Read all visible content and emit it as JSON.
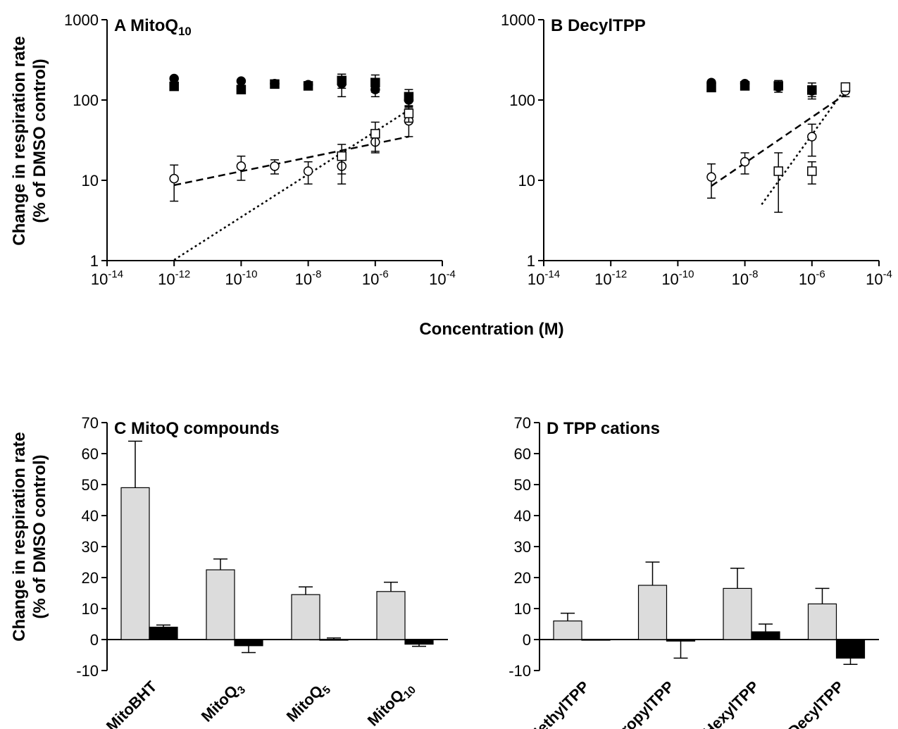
{
  "figure": {
    "y_title_line1": "Change in respiration rate",
    "y_title_line2": "(% of DMSO control)",
    "x_title_top": "Concentration (M)"
  },
  "chart_data": [
    {
      "panel": "A",
      "title_text": "MitoQ",
      "title_sub": "10",
      "type": "scatter",
      "x_scale": "log",
      "y_scale": "log",
      "xlim_exp": [
        -14,
        -4
      ],
      "ylim": [
        1,
        1000
      ],
      "x_ticks_exp": [
        -14,
        -12,
        -10,
        -8,
        -6,
        -4
      ],
      "y_ticks": [
        "1",
        "10",
        "100",
        "1000"
      ],
      "series": [
        {
          "marker": "filled-circle",
          "points": [
            {
              "x": -12,
              "y": 185
            },
            {
              "x": -10,
              "y": 172
            },
            {
              "x": -9,
              "y": 160
            },
            {
              "x": -8,
              "y": 155
            },
            {
              "x": -7,
              "y": 160,
              "err": 50
            },
            {
              "x": -6,
              "y": 135,
              "err": 25
            },
            {
              "x": -5,
              "y": 100,
              "err": 20
            }
          ]
        },
        {
          "marker": "filled-square",
          "points": [
            {
              "x": -12,
              "y": 148
            },
            {
              "x": -10,
              "y": 135
            },
            {
              "x": -9,
              "y": 158
            },
            {
              "x": -8,
              "y": 150
            },
            {
              "x": -7,
              "y": 175,
              "err": 35
            },
            {
              "x": -6,
              "y": 165,
              "err": 40
            },
            {
              "x": -5,
              "y": 110,
              "err": 25
            }
          ]
        },
        {
          "marker": "open-circle",
          "points": [
            {
              "x": -12,
              "y": 10.5,
              "err": 5
            },
            {
              "x": -10,
              "y": 15,
              "err": 5
            },
            {
              "x": -9,
              "y": 15,
              "err": 3
            },
            {
              "x": -8,
              "y": 13,
              "err": 4
            },
            {
              "x": -7,
              "y": 15,
              "err": 6
            },
            {
              "x": -6,
              "y": 30,
              "err": 8
            },
            {
              "x": -5,
              "y": 55,
              "err": 20
            }
          ],
          "fit": {
            "from": [
              -12,
              8.7
            ],
            "to": [
              -5,
              35
            ]
          }
        },
        {
          "marker": "open-square",
          "points": [
            {
              "x": -7,
              "y": 20,
              "err": 8
            },
            {
              "x": -6,
              "y": 38,
              "err": 15
            },
            {
              "x": -5,
              "y": 68,
              "err": 15
            }
          ],
          "fit": {
            "from": [
              -12,
              1.02
            ],
            "to": [
              -5,
              75
            ]
          }
        }
      ]
    },
    {
      "panel": "B",
      "title_text": "DecylTPP",
      "title_sub": "",
      "type": "scatter",
      "x_scale": "log",
      "y_scale": "log",
      "xlim_exp": [
        -14,
        -4
      ],
      "ylim": [
        1,
        1000
      ],
      "x_ticks_exp": [
        -14,
        -12,
        -10,
        -8,
        -6,
        -4
      ],
      "y_ticks": [
        "1",
        "10",
        "100",
        "1000"
      ],
      "series": [
        {
          "marker": "filled-circle",
          "points": [
            {
              "x": -9,
              "y": 165
            },
            {
              "x": -8,
              "y": 160
            },
            {
              "x": -7,
              "y": 145
            },
            {
              "x": -6,
              "y": 130,
              "err": 20
            }
          ]
        },
        {
          "marker": "filled-square",
          "points": [
            {
              "x": -9,
              "y": 143
            },
            {
              "x": -8,
              "y": 150
            },
            {
              "x": -7,
              "y": 150,
              "err": 25
            },
            {
              "x": -6,
              "y": 133,
              "err": 30
            }
          ]
        },
        {
          "marker": "open-circle",
          "points": [
            {
              "x": -9,
              "y": 11,
              "err": 5
            },
            {
              "x": -8,
              "y": 17,
              "err": 5
            },
            {
              "x": -6,
              "y": 35,
              "err": 15
            },
            {
              "x": -5,
              "y": 130,
              "err": 20
            }
          ],
          "fit": {
            "from": [
              -9,
              8.5
            ],
            "to": [
              -5,
              118
            ]
          }
        },
        {
          "marker": "open-square",
          "points": [
            {
              "x": -7,
              "y": 13,
              "err": 9
            },
            {
              "x": -6,
              "y": 13,
              "err": 4
            },
            {
              "x": -5,
              "y": 145,
              "err": 10
            }
          ],
          "fit": {
            "from": [
              -7.5,
              5
            ],
            "to": [
              -5,
              140
            ]
          }
        }
      ]
    },
    {
      "panel": "C",
      "title_text": "MitoQ compounds",
      "type": "bar",
      "ylim": [
        -10,
        70
      ],
      "y_ticks": [
        "-10",
        "0",
        "10",
        "20",
        "30",
        "40",
        "50",
        "60",
        "70"
      ],
      "categories": [
        {
          "main": "MitoBHT",
          "sub": ""
        },
        {
          "main": "MitoQ",
          "sub": "3"
        },
        {
          "main": "MitoQ",
          "sub": "5"
        },
        {
          "main": "MitoQ",
          "sub": "10"
        }
      ],
      "series": [
        {
          "color": "#dcdcdc",
          "values": [
            49,
            22.5,
            14.5,
            15.5
          ],
          "errors": [
            15,
            3.5,
            2.5,
            3
          ]
        },
        {
          "color": "#000000",
          "values": [
            4,
            -2,
            0,
            -1.5
          ],
          "errors": [
            0.7,
            2.2,
            0.5,
            0.7
          ]
        }
      ]
    },
    {
      "panel": "D",
      "title_text": "TPP cations",
      "type": "bar",
      "ylim": [
        -10,
        70
      ],
      "y_ticks": [
        "-10",
        "0",
        "10",
        "20",
        "30",
        "40",
        "50",
        "60",
        "70"
      ],
      "categories": [
        {
          "main": "MethylTPP",
          "sub": ""
        },
        {
          "main": "PropylTPP",
          "sub": ""
        },
        {
          "main": "HexylTPP",
          "sub": ""
        },
        {
          "main": "DecylTPP",
          "sub": ""
        }
      ],
      "series": [
        {
          "color": "#dcdcdc",
          "values": [
            6,
            17.5,
            16.5,
            11.5
          ],
          "errors": [
            2.5,
            7.5,
            6.5,
            5
          ]
        },
        {
          "color": "#000000",
          "values": [
            0,
            -0.5,
            2.5,
            -6
          ],
          "errors": [
            0,
            5.5,
            2.5,
            2
          ]
        }
      ]
    }
  ]
}
